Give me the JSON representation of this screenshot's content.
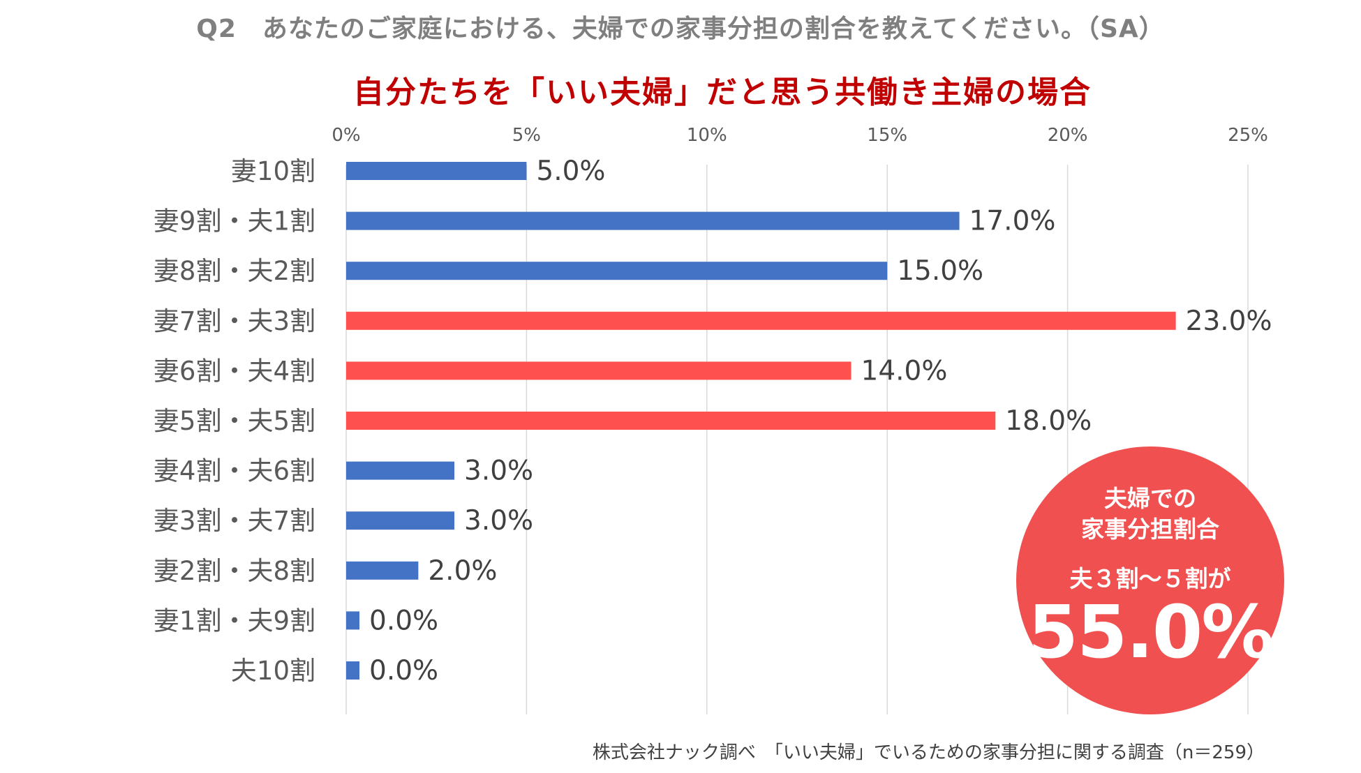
{
  "header": {
    "question": "Q2　あなたのご家庭における、夫婦での家事分担の割合を教えてください。（SA）"
  },
  "chart_data": {
    "type": "bar",
    "orientation": "horizontal",
    "title": "自分たちを「いい夫婦」だと思う共働き主婦の場合",
    "xlim": [
      0,
      25
    ],
    "ticks": [
      0,
      5,
      10,
      15,
      20,
      25
    ],
    "tick_labels": [
      "0%",
      "5%",
      "10%",
      "15%",
      "20%",
      "25%"
    ],
    "grid": true,
    "categories": [
      "妻10割",
      "妻9割・夫1割",
      "妻8割・夫2割",
      "妻7割・夫3割",
      "妻6割・夫4割",
      "妻5割・夫5割",
      "妻4割・夫6割",
      "妻3割・夫7割",
      "妻2割・夫8割",
      "妻1割・夫9割",
      "夫10割"
    ],
    "values": [
      5.0,
      17.0,
      15.0,
      23.0,
      14.0,
      18.0,
      3.0,
      3.0,
      2.0,
      0.0,
      0.0
    ],
    "value_labels": [
      "5.0%",
      "17.0%",
      "15.0%",
      "23.0%",
      "14.0%",
      "18.0%",
      "3.0%",
      "3.0%",
      "2.0%",
      "0.0%",
      "0.0%"
    ],
    "highlighted": [
      false,
      false,
      false,
      true,
      true,
      true,
      false,
      false,
      false,
      false,
      false
    ],
    "colors": {
      "normal": "#4472c4",
      "highlight": "#ff5050",
      "grid": "#d9d9d9",
      "text": "#595959"
    }
  },
  "callout": {
    "line1": "夫婦での",
    "line2": "家事分担割合",
    "line3": "夫３割〜５割が",
    "value": "55.0%",
    "color": "#f05050"
  },
  "footer": {
    "source": "株式会社ナック調べ　「いい夫婦」でいるための家事分担に関する調査（n＝259）"
  }
}
